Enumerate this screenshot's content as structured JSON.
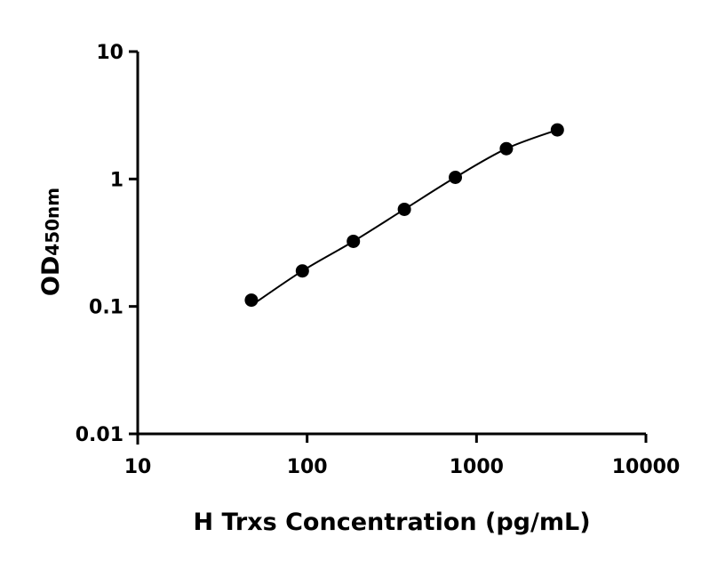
{
  "chart_data": {
    "type": "scatter",
    "title": "",
    "xlabel": "H Trxs Concentration (pg/mL)",
    "ylabel_main": "OD",
    "ylabel_sub": "450nm",
    "x_scale": "log",
    "y_scale": "log",
    "xlim": [
      10,
      10000
    ],
    "ylim": [
      0.01,
      10
    ],
    "x_ticks": [
      "10",
      "100",
      "1000",
      "10000"
    ],
    "y_ticks": [
      "0.01",
      "0.1",
      "1",
      "10"
    ],
    "grid": false,
    "legend": "none",
    "fit_curve": true,
    "point_color": "#000000",
    "points": [
      {
        "x": 46.875,
        "y": 0.112
      },
      {
        "x": 93.75,
        "y": 0.19
      },
      {
        "x": 187.5,
        "y": 0.324
      },
      {
        "x": 375,
        "y": 0.578
      },
      {
        "x": 750,
        "y": 1.03
      },
      {
        "x": 1500,
        "y": 1.73
      },
      {
        "x": 3000,
        "y": 2.43
      }
    ]
  }
}
